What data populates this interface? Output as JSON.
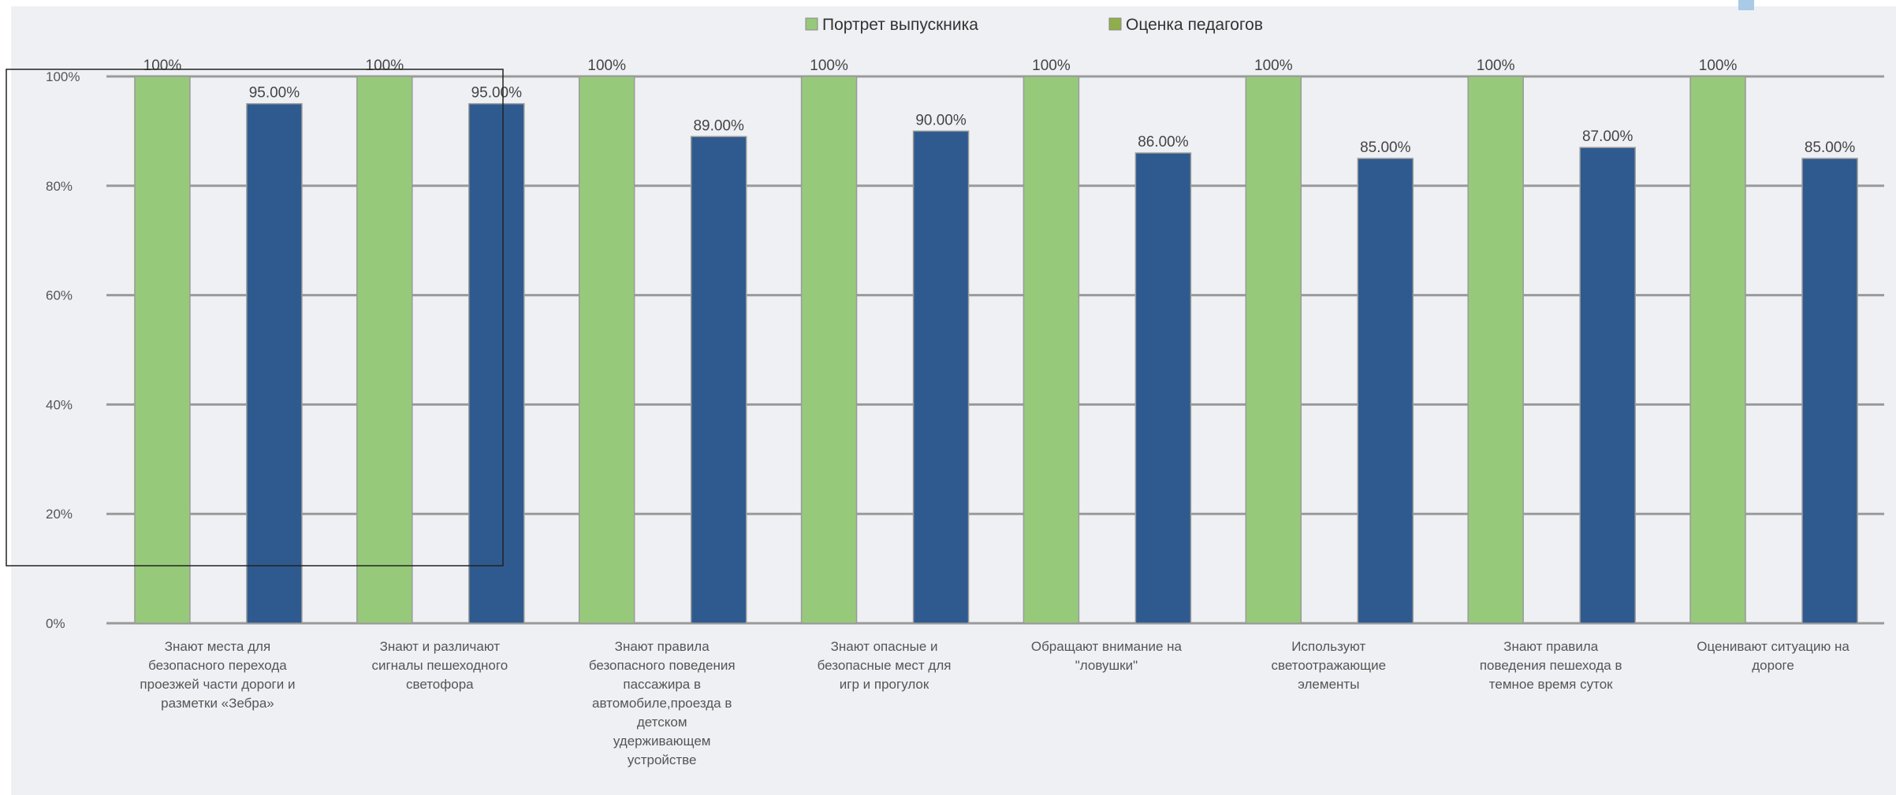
{
  "chart_data": {
    "type": "bar",
    "title": "",
    "xlabel": "",
    "ylabel": "",
    "ylim": [
      0,
      100
    ],
    "yticks": [
      "0%",
      "20%",
      "40%",
      "60%",
      "80%",
      "100%"
    ],
    "grid": true,
    "legend_position": "top",
    "categories": [
      [
        "Знают места для",
        "безопасного перехода",
        "проезжей части дороги и",
        "разметки «Зебра»"
      ],
      [
        "Знают и различают",
        "сигналы пешеходного",
        "светофора"
      ],
      [
        "Знают правила",
        "безопасного поведения",
        "пассажира в",
        "автомобиле,проезда в",
        "детском",
        "удерживающем",
        "устройстве"
      ],
      [
        "Знают опасные и",
        "безопасные мест для",
        "игр и прогулок"
      ],
      [
        "Обращают внимание на",
        "\"ловушки\""
      ],
      [
        "Используют",
        "светоотражающие",
        "элементы"
      ],
      [
        "Знают правила",
        "поведения пешехода в",
        "темное время суток"
      ],
      [
        "Оценивают ситуацию на",
        "дороге"
      ]
    ],
    "series": [
      {
        "name": "Портрет выпускника",
        "color": "#97c97b",
        "values": [
          100,
          100,
          100,
          100,
          100,
          100,
          100,
          100
        ],
        "labels": [
          "100%",
          "100%",
          "100%",
          "100%",
          "100%",
          "100%",
          "100%",
          "100%"
        ]
      },
      {
        "name": "Оценка педагогов",
        "color": "#2f5a8f",
        "legend_color": "#8fae4a",
        "values": [
          95,
          95,
          89,
          90,
          86,
          85,
          87,
          85
        ],
        "labels": [
          "95.00%",
          "95.00%",
          "89.00%",
          "90.00%",
          "86.00%",
          "85.00%",
          "87.00%",
          "85.00%"
        ]
      }
    ]
  },
  "colors": {
    "plot_background": "#eff0f4",
    "gridline": "#9a9a9a",
    "bar_outline": "#9a9a9a"
  }
}
